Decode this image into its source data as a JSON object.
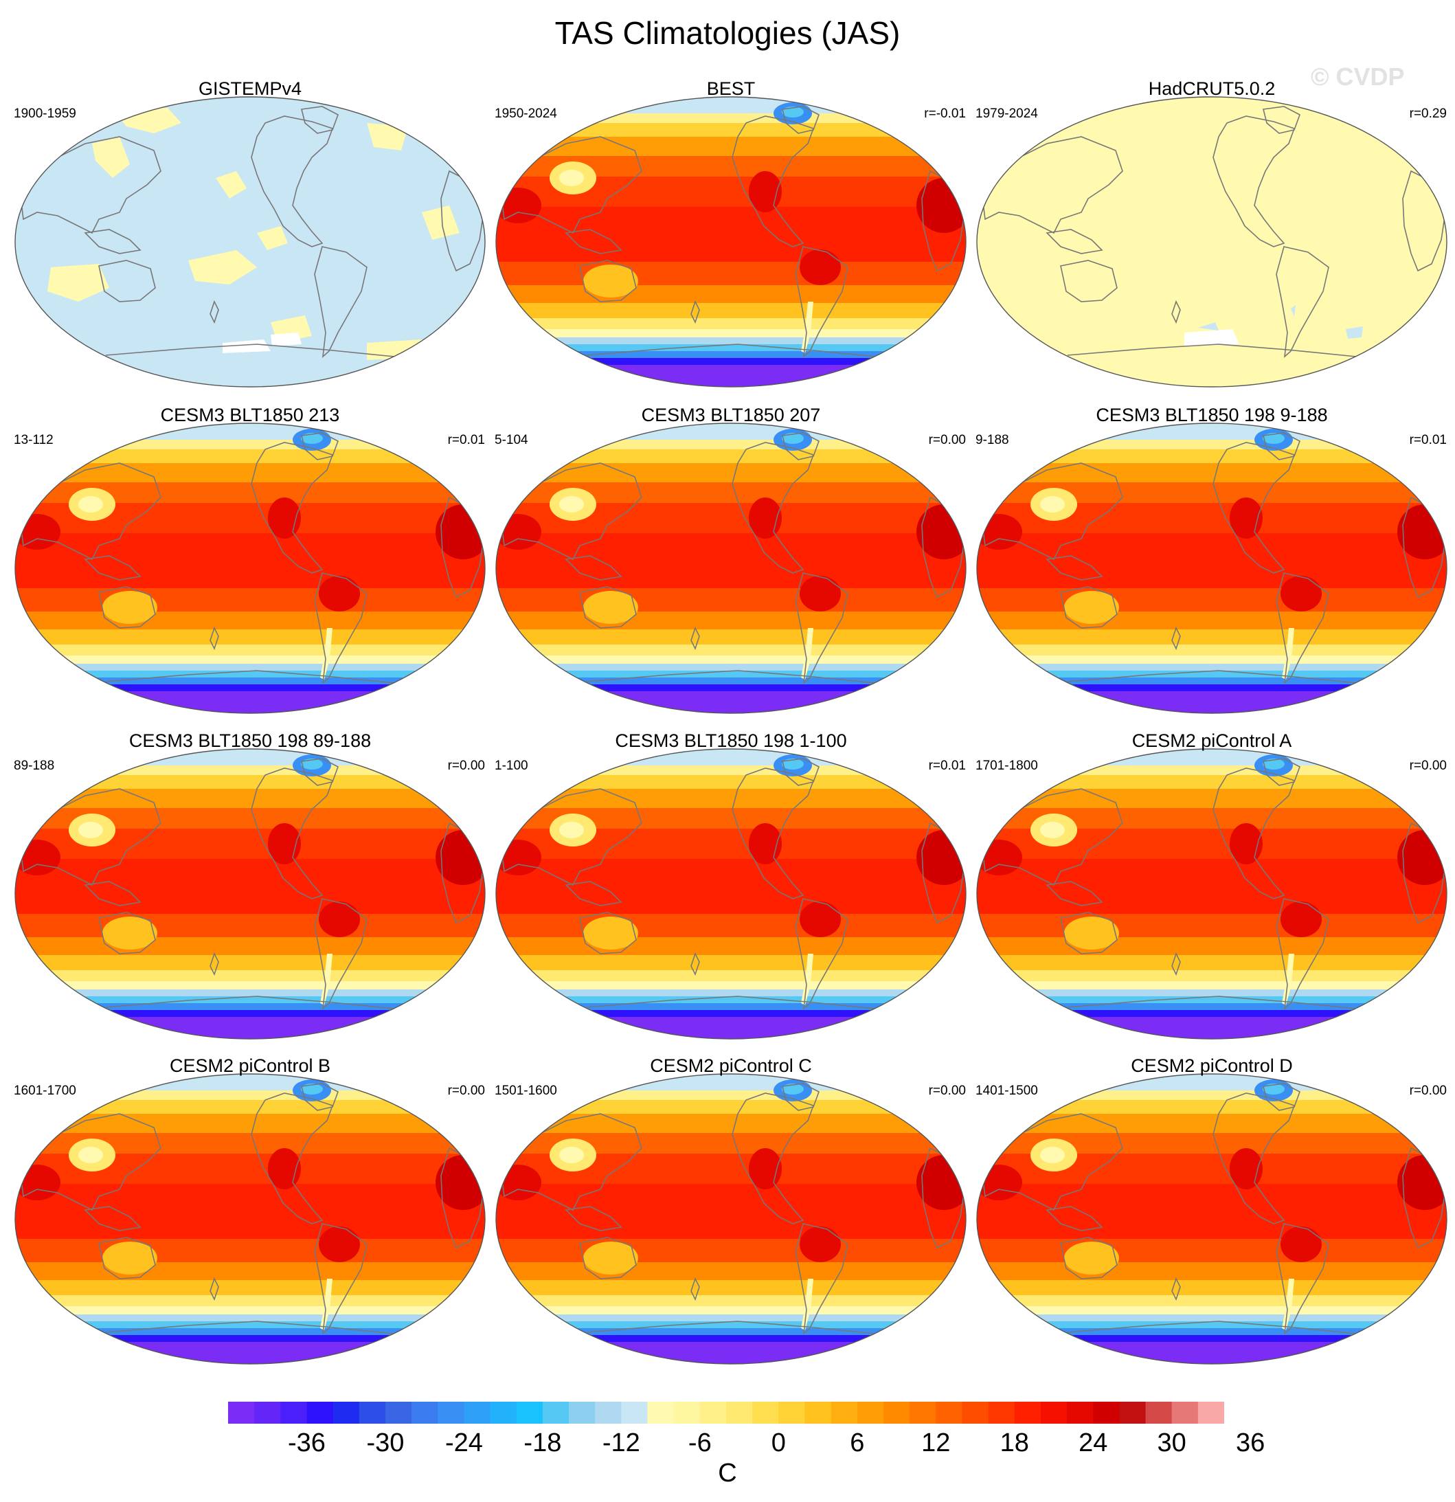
{
  "title": "TAS Climatologies (JAS)",
  "watermark": "© CVDP",
  "panels": [
    {
      "title": "GISTEMPv4",
      "period": "1900-1959",
      "corr": "",
      "style": "anomaly"
    },
    {
      "title": "BEST",
      "period": "1950-2024",
      "corr": "r=-0.01",
      "style": "climatology"
    },
    {
      "title": "HadCRUT5.0.2",
      "period": "1979-2024",
      "corr": "r=0.29",
      "style": "flat"
    },
    {
      "title": "CESM3 BLT1850 213",
      "period": "13-112",
      "corr": "r=0.01",
      "style": "climatology"
    },
    {
      "title": "CESM3 BLT1850 207",
      "period": "5-104",
      "corr": "r=0.00",
      "style": "climatology"
    },
    {
      "title": "CESM3 BLT1850 198 9-188",
      "period": "9-188",
      "corr": "r=0.01",
      "style": "climatology"
    },
    {
      "title": "CESM3 BLT1850 198 89-188",
      "period": "89-188",
      "corr": "r=0.00",
      "style": "climatology"
    },
    {
      "title": "CESM3 BLT1850 198 1-100",
      "period": "1-100",
      "corr": "r=0.01",
      "style": "climatology"
    },
    {
      "title": "CESM2 piControl A",
      "period": "1701-1800",
      "corr": "r=0.00",
      "style": "climatology"
    },
    {
      "title": "CESM2 piControl B",
      "period": "1601-1700",
      "corr": "r=0.00",
      "style": "climatology"
    },
    {
      "title": "CESM2 piControl C",
      "period": "1501-1600",
      "corr": "r=0.00",
      "style": "climatology"
    },
    {
      "title": "CESM2 piControl D",
      "period": "1401-1500",
      "corr": "r=0.00",
      "style": "climatology"
    }
  ],
  "colorbar": {
    "unit": "C",
    "tick_labels": [
      "-36",
      "-30",
      "-24",
      "-18",
      "-12",
      "-6",
      "0",
      "6",
      "12",
      "18",
      "24",
      "30",
      "36"
    ],
    "colors": [
      "#7b2cf5",
      "#6426f8",
      "#4a1ffa",
      "#2d12fb",
      "#1d2cf0",
      "#2e4ee8",
      "#3a66e6",
      "#3b7df0",
      "#3a8ff5",
      "#2fa0f8",
      "#22b2fb",
      "#19c2fc",
      "#56c8f4",
      "#8ccff0",
      "#aed9f0",
      "#c9e6f5",
      "#fffab0",
      "#fff6a0",
      "#fff08a",
      "#ffe970",
      "#ffdf50",
      "#ffd236",
      "#ffc21e",
      "#ffb010",
      "#ff9d06",
      "#ff8a00",
      "#ff7600",
      "#ff6200",
      "#ff4d00",
      "#ff3800",
      "#ff2000",
      "#f51000",
      "#e40800",
      "#d00000",
      "#c21010",
      "#d44848",
      "#e67878",
      "#f9a8a8"
    ]
  }
}
